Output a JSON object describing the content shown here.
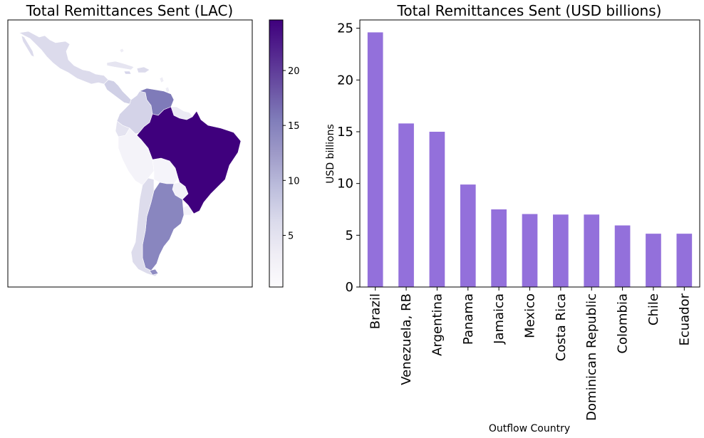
{
  "chart_data": [
    {
      "type": "choropleth",
      "title": "Total Remittances Sent (LAC)",
      "colormap": "Purples",
      "colorbar": {
        "range": [
          0.3,
          24.6
        ],
        "ticks": [
          5,
          10,
          15,
          20
        ],
        "tick_labels": [
          "5",
          "10",
          "15",
          "20"
        ]
      },
      "regions": [
        {
          "name": "Brazil",
          "value": 24.6
        },
        {
          "name": "Venezuela, RB",
          "value": 15.8
        },
        {
          "name": "Argentina",
          "value": 15.0
        },
        {
          "name": "Chile",
          "value": 5.1
        },
        {
          "name": "Colombia",
          "value": 5.9
        },
        {
          "name": "Mexico",
          "value": 7.0
        },
        {
          "name": "Peru",
          "value": 0.8
        },
        {
          "name": "Bolivia",
          "value": 0.6
        },
        {
          "name": "Ecuador",
          "value": 5.1
        },
        {
          "name": "Paraguay",
          "value": 0.4
        },
        {
          "name": "Uruguay",
          "value": 0.5
        },
        {
          "name": "Central America",
          "value": 6.0
        }
      ]
    },
    {
      "type": "bar",
      "title": "Total Remittances Sent (USD billions)",
      "xlabel": "Outflow Country",
      "ylabel": "USD billions",
      "categories": [
        "Brazil",
        "Venezuela, RB",
        "Argentina",
        "Panama",
        "Jamaica",
        "Mexico",
        "Costa Rica",
        "Dominican Republic",
        "Colombia",
        "Chile",
        "Ecuador"
      ],
      "values": [
        24.6,
        15.8,
        15.0,
        9.9,
        7.5,
        7.05,
        7.0,
        7.0,
        5.95,
        5.15,
        5.15
      ],
      "ylim": [
        0,
        25.8
      ],
      "yticks": [
        0,
        5,
        10,
        15,
        20,
        25
      ],
      "bar_color": "#9370DB",
      "grid": false,
      "legend": "none"
    }
  ]
}
